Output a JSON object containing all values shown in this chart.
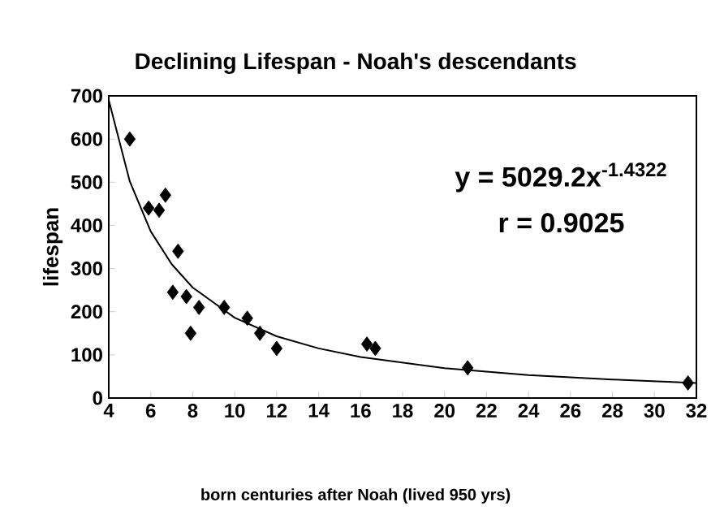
{
  "chart_data": {
    "type": "scatter",
    "title": "Declining Lifespan - Noah's descendants",
    "xlabel": "born centuries after Noah (lived 950 yrs)",
    "ylabel": "lifespan",
    "xlim": [
      4,
      32
    ],
    "ylim": [
      0,
      700
    ],
    "xticks": [
      4,
      6,
      8,
      10,
      12,
      14,
      16,
      18,
      20,
      22,
      24,
      26,
      28,
      30,
      32
    ],
    "yticks": [
      0,
      100,
      200,
      300,
      400,
      500,
      600,
      700
    ],
    "grid": false,
    "annotations": [
      "y = 5029.2x$^{-1.4322}$",
      "r = 0.9025"
    ],
    "series": [
      {
        "color": "#000000",
        "marker": "diamond",
        "x": [
          5.0,
          5.9,
          6.4,
          6.7,
          7.3,
          7.05,
          7.7,
          8.3,
          7.9,
          9.5,
          10.6,
          11.2,
          12.0,
          16.3,
          16.7,
          21.1,
          31.6
        ],
        "values": [
          600,
          440,
          435,
          470,
          340,
          245,
          235,
          210,
          150,
          210,
          185,
          150,
          115,
          125,
          115,
          70,
          35
        ]
      },
      {
        "type": "line",
        "color": "#000000",
        "marker": "none",
        "line_style": "solid",
        "x": [
          4,
          5,
          6,
          7,
          8,
          10,
          12,
          14,
          16,
          20,
          24,
          28,
          32
        ],
        "values": [
          690,
          502,
          386,
          310,
          256,
          186,
          143,
          115,
          95,
          69,
          53,
          43,
          35
        ]
      }
    ]
  }
}
